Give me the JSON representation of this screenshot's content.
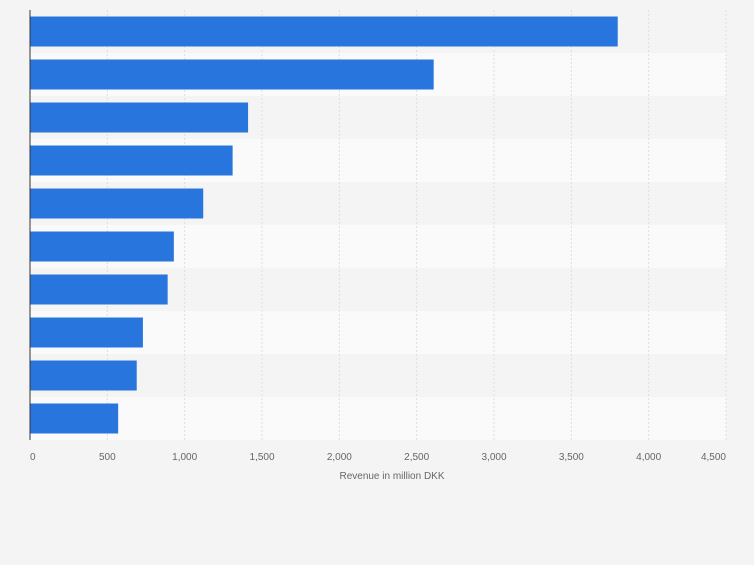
{
  "chart_data": {
    "type": "bar",
    "orientation": "horizontal",
    "categories": [
      "",
      "",
      "",
      "",
      "",
      "",
      "",
      "",
      "",
      ""
    ],
    "values": [
      3800,
      2610,
      1410,
      1310,
      1120,
      930,
      890,
      730,
      690,
      570
    ],
    "xlabel": "Revenue in million DKK",
    "xlim": [
      0,
      4500
    ],
    "xticks": [
      0,
      500,
      1000,
      1500,
      2000,
      2500,
      3000,
      3500,
      4000,
      4500
    ],
    "xtick_labels": [
      "0",
      "500",
      "1,000",
      "1,500",
      "2,000",
      "2,500",
      "3,000",
      "3,500",
      "4,000",
      "4,500"
    ],
    "grid": true,
    "colors": {
      "bar": "#2876dd",
      "band_light": "#f4f4f4",
      "band_dark": "#fafafa",
      "grid": "#dedede",
      "axis": "#333333",
      "text": "#666666"
    }
  }
}
